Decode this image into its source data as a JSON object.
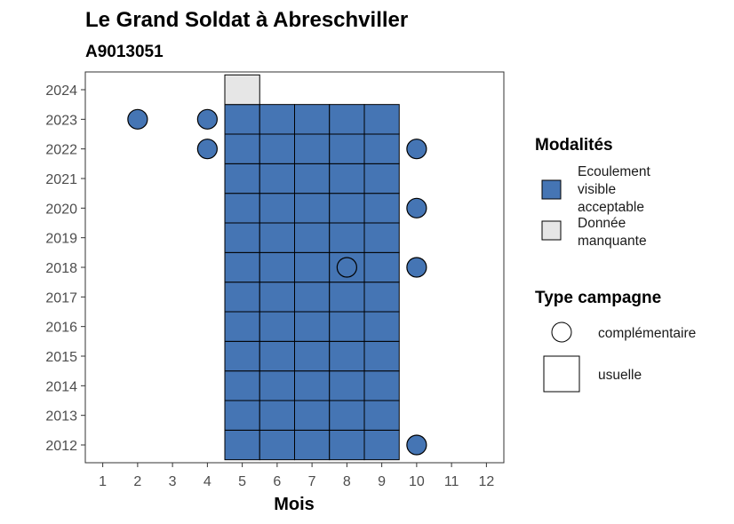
{
  "chart_data": {
    "type": "heatmap",
    "title": "Le Grand Soldat à Abreschviller",
    "subtitle": "A9013051",
    "xlabel": "Mois",
    "ylabel": "",
    "x_ticks": [
      1,
      2,
      3,
      4,
      5,
      6,
      7,
      8,
      9,
      10,
      11,
      12
    ],
    "y_ticks": [
      2012,
      2013,
      2014,
      2015,
      2016,
      2017,
      2018,
      2019,
      2020,
      2021,
      2022,
      2023,
      2024
    ],
    "xlim": [
      0.5,
      12.5
    ],
    "ylim": [
      2011.4,
      2024.6
    ],
    "grid": false,
    "legend_placement": "right",
    "colors": {
      "ecoulement": "#4575b4",
      "manquante": "#e6e6e6",
      "border": "#000000"
    },
    "legend_modalites": {
      "title": "Modalités",
      "items": [
        {
          "key": "ecoulement",
          "label_lines": [
            "Ecoulement",
            "visible",
            "acceptable"
          ]
        },
        {
          "key": "manquante",
          "label_lines": [
            "Donnée",
            "manquante"
          ]
        }
      ]
    },
    "legend_campagne": {
      "title": "Type campagne",
      "items": [
        {
          "shape": "circle",
          "label": "complémentaire"
        },
        {
          "shape": "square",
          "label": "usuelle"
        }
      ]
    },
    "tiles_usuelle": [
      {
        "month": 5,
        "year_from": 2012,
        "year_to": 2023,
        "modalite": "ecoulement"
      },
      {
        "month": 6,
        "year_from": 2012,
        "year_to": 2023,
        "modalite": "ecoulement"
      },
      {
        "month": 7,
        "year_from": 2012,
        "year_to": 2023,
        "modalite": "ecoulement"
      },
      {
        "month": 8,
        "year_from": 2012,
        "year_to": 2023,
        "modalite": "ecoulement"
      },
      {
        "month": 9,
        "year_from": 2012,
        "year_to": 2023,
        "modalite": "ecoulement"
      },
      {
        "month": 5,
        "year_from": 2024,
        "year_to": 2024,
        "modalite": "manquante"
      }
    ],
    "points_complementaire": [
      {
        "month": 2,
        "year": 2023,
        "modalite": "ecoulement"
      },
      {
        "month": 4,
        "year": 2023,
        "modalite": "ecoulement"
      },
      {
        "month": 4,
        "year": 2022,
        "modalite": "ecoulement"
      },
      {
        "month": 10,
        "year": 2022,
        "modalite": "ecoulement"
      },
      {
        "month": 10,
        "year": 2020,
        "modalite": "ecoulement"
      },
      {
        "month": 8,
        "year": 2018,
        "modalite": "ecoulement"
      },
      {
        "month": 10,
        "year": 2018,
        "modalite": "ecoulement"
      },
      {
        "month": 10,
        "year": 2012,
        "modalite": "ecoulement"
      }
    ]
  }
}
